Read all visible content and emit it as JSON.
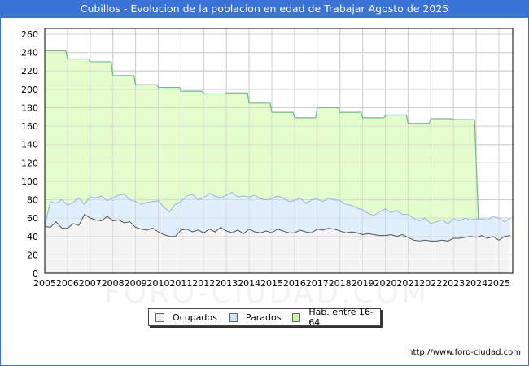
{
  "title": "Cubillos - Evolucion de la poblacion en edad de Trabajar Agosto de 2025",
  "watermark": "FORO-CIUDAD.COM",
  "url": "http://www.foro-ciudad.com",
  "legend": [
    {
      "label": "Ocupados",
      "color": "#f0f0f0"
    },
    {
      "label": "Parados",
      "color": "#cfe2fa"
    },
    {
      "label": "Hab. entre 16-64",
      "color": "#ccf5a8"
    }
  ],
  "colors": {
    "title_bg": "#3a72d6",
    "hab_fill": "#e5fccc",
    "hab_line": "#6fb88f",
    "parados_fill": "#e1effc",
    "parados_line": "#92b4ea",
    "ocupados_fill": "#f4f4f4",
    "ocupados_line": "#555555",
    "grid": "#d0d0d0"
  },
  "chart_data": {
    "type": "area",
    "title": "Cubillos - Evolucion de la poblacion en edad de Trabajar Agosto de 2025",
    "xlabel": "",
    "ylabel": "",
    "ylim": [
      0,
      265
    ],
    "yticks": [
      0,
      20,
      40,
      60,
      80,
      100,
      120,
      140,
      160,
      180,
      200,
      220,
      240,
      260
    ],
    "xticks": [
      "2005",
      "2006",
      "2007",
      "2008",
      "2009",
      "2010",
      "2011",
      "2012",
      "2013",
      "2014",
      "2015",
      "2016",
      "2017",
      "2018",
      "2019",
      "2020",
      "2021",
      "2022",
      "2023",
      "2024",
      "2025"
    ],
    "grid": true,
    "legend_position": "bottom",
    "series": [
      {
        "name": "Hab. entre 16-64",
        "x": [
          2005,
          2006,
          2007,
          2008,
          2009,
          2010,
          2011,
          2012,
          2013,
          2014,
          2015,
          2016,
          2017,
          2018,
          2019,
          2020,
          2021,
          2022,
          2023
        ],
        "values": [
          242,
          233,
          230,
          215,
          205,
          202,
          198,
          195,
          196,
          185,
          175,
          169,
          180,
          175,
          169,
          172,
          163,
          168,
          167
        ]
      },
      {
        "name": "Parados",
        "x": [
          2005.0,
          2005.25,
          2005.5,
          2005.75,
          2006.0,
          2006.25,
          2006.5,
          2006.75,
          2007.0,
          2007.25,
          2007.5,
          2007.75,
          2008.0,
          2008.25,
          2008.5,
          2008.75,
          2009.0,
          2009.25,
          2009.5,
          2009.75,
          2010.0,
          2010.25,
          2010.5,
          2010.75,
          2011.0,
          2011.25,
          2011.5,
          2011.75,
          2012.0,
          2012.25,
          2012.5,
          2012.75,
          2013.0,
          2013.25,
          2013.5,
          2013.75,
          2014.0,
          2014.25,
          2014.5,
          2014.75,
          2015.0,
          2015.25,
          2015.5,
          2015.75,
          2016.0,
          2016.25,
          2016.5,
          2016.75,
          2017.0,
          2017.25,
          2017.5,
          2017.75,
          2018.0,
          2018.25,
          2018.5,
          2018.75,
          2019.0,
          2019.25,
          2019.5,
          2019.75,
          2020.0,
          2020.25,
          2020.5,
          2020.75,
          2021.0,
          2021.25,
          2021.5,
          2021.75,
          2022.0,
          2022.25,
          2022.5,
          2022.75,
          2023.0,
          2023.25,
          2023.5,
          2023.75,
          2024.0,
          2024.25,
          2024.5,
          2024.75,
          2025.0,
          2025.25,
          2025.5
        ],
        "values": [
          52,
          78,
          76,
          80,
          74,
          77,
          82,
          75,
          83,
          82,
          84,
          79,
          82,
          85,
          86,
          80,
          78,
          75,
          77,
          78,
          79,
          72,
          67,
          75,
          78,
          84,
          86,
          80,
          82,
          87,
          84,
          82,
          85,
          88,
          83,
          84,
          83,
          85,
          81,
          80,
          81,
          84,
          82,
          78,
          79,
          82,
          76,
          80,
          81,
          78,
          82,
          80,
          79,
          75,
          74,
          71,
          69,
          65,
          63,
          67,
          70,
          66,
          68,
          64,
          64,
          60,
          57,
          60,
          54,
          56,
          58,
          54,
          59,
          57,
          60,
          58,
          59,
          59,
          58,
          62,
          60,
          56,
          60
        ]
      },
      {
        "name": "Ocupados",
        "x": [
          2005.0,
          2005.25,
          2005.5,
          2005.75,
          2006.0,
          2006.25,
          2006.5,
          2006.75,
          2007.0,
          2007.25,
          2007.5,
          2007.75,
          2008.0,
          2008.25,
          2008.5,
          2008.75,
          2009.0,
          2009.25,
          2009.5,
          2009.75,
          2010.0,
          2010.25,
          2010.5,
          2010.75,
          2011.0,
          2011.25,
          2011.5,
          2011.75,
          2012.0,
          2012.25,
          2012.5,
          2012.75,
          2013.0,
          2013.25,
          2013.5,
          2013.75,
          2014.0,
          2014.25,
          2014.5,
          2014.75,
          2015.0,
          2015.25,
          2015.5,
          2015.75,
          2016.0,
          2016.25,
          2016.5,
          2016.75,
          2017.0,
          2017.25,
          2017.5,
          2017.75,
          2018.0,
          2018.25,
          2018.5,
          2018.75,
          2019.0,
          2019.25,
          2019.5,
          2019.75,
          2020.0,
          2020.25,
          2020.5,
          2020.75,
          2021.0,
          2021.25,
          2021.5,
          2021.75,
          2022.0,
          2022.25,
          2022.5,
          2022.75,
          2023.0,
          2023.25,
          2023.5,
          2023.75,
          2024.0,
          2024.25,
          2024.5,
          2024.75,
          2025.0,
          2025.25,
          2025.5
        ],
        "values": [
          51,
          50,
          56,
          49,
          49,
          54,
          52,
          64,
          60,
          58,
          57,
          62,
          57,
          58,
          55,
          56,
          50,
          48,
          47,
          49,
          45,
          42,
          40,
          40,
          47,
          48,
          45,
          47,
          44,
          48,
          45,
          50,
          46,
          44,
          47,
          43,
          48,
          45,
          44,
          46,
          44,
          48,
          46,
          44,
          44,
          47,
          45,
          44,
          48,
          47,
          49,
          48,
          46,
          44,
          45,
          44,
          42,
          43,
          42,
          41,
          41,
          42,
          40,
          42,
          39,
          36,
          35,
          36,
          35,
          35,
          36,
          35,
          38,
          38,
          39,
          40,
          39,
          41,
          38,
          40,
          36,
          40,
          41
        ]
      }
    ]
  }
}
